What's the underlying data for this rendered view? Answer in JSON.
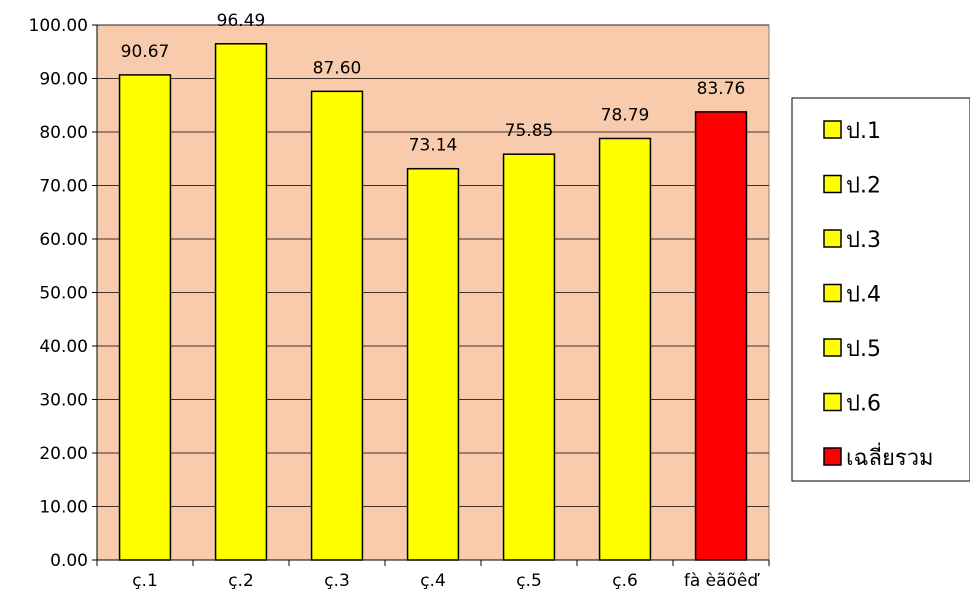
{
  "chart_data": {
    "type": "bar",
    "categories": [
      "ç.1",
      "ç.2",
      "ç.3",
      "ç.4",
      "ç.5",
      "ç.6",
      "fà èãõêď"
    ],
    "values": [
      90.67,
      96.49,
      87.6,
      73.14,
      75.85,
      78.79,
      83.76
    ],
    "value_labels": [
      "90.67",
      "96.49",
      "87.60",
      "73.14",
      "75.85",
      "78.79",
      "83.76"
    ],
    "bar_colors": [
      "#FFFF00",
      "#FFFF00",
      "#FFFF00",
      "#FFFF00",
      "#FFFF00",
      "#FFFF00",
      "#FF0000"
    ],
    "ylim": [
      0,
      100
    ],
    "yticks": [
      0,
      10,
      20,
      30,
      40,
      50,
      60,
      70,
      80,
      90,
      100
    ],
    "ytick_labels": [
      "0.00",
      "10.00",
      "20.00",
      "30.00",
      "40.00",
      "50.00",
      "60.00",
      "70.00",
      "80.00",
      "90.00",
      "100.00"
    ],
    "grid": true,
    "plot_background": "#F8CBAD",
    "legend": {
      "placement": "right",
      "entries": [
        {
          "label": "ป.1",
          "color": "#FFFF00"
        },
        {
          "label": "ป.2",
          "color": "#FFFF00"
        },
        {
          "label": "ป.3",
          "color": "#FFFF00"
        },
        {
          "label": "ป.4",
          "color": "#FFFF00"
        },
        {
          "label": "ป.5",
          "color": "#FFFF00"
        },
        {
          "label": "ป.6",
          "color": "#FFFF00"
        },
        {
          "label": "เฉลี่ยรวม",
          "color": "#FF0000"
        }
      ]
    },
    "title": "",
    "xlabel": "",
    "ylabel": ""
  }
}
